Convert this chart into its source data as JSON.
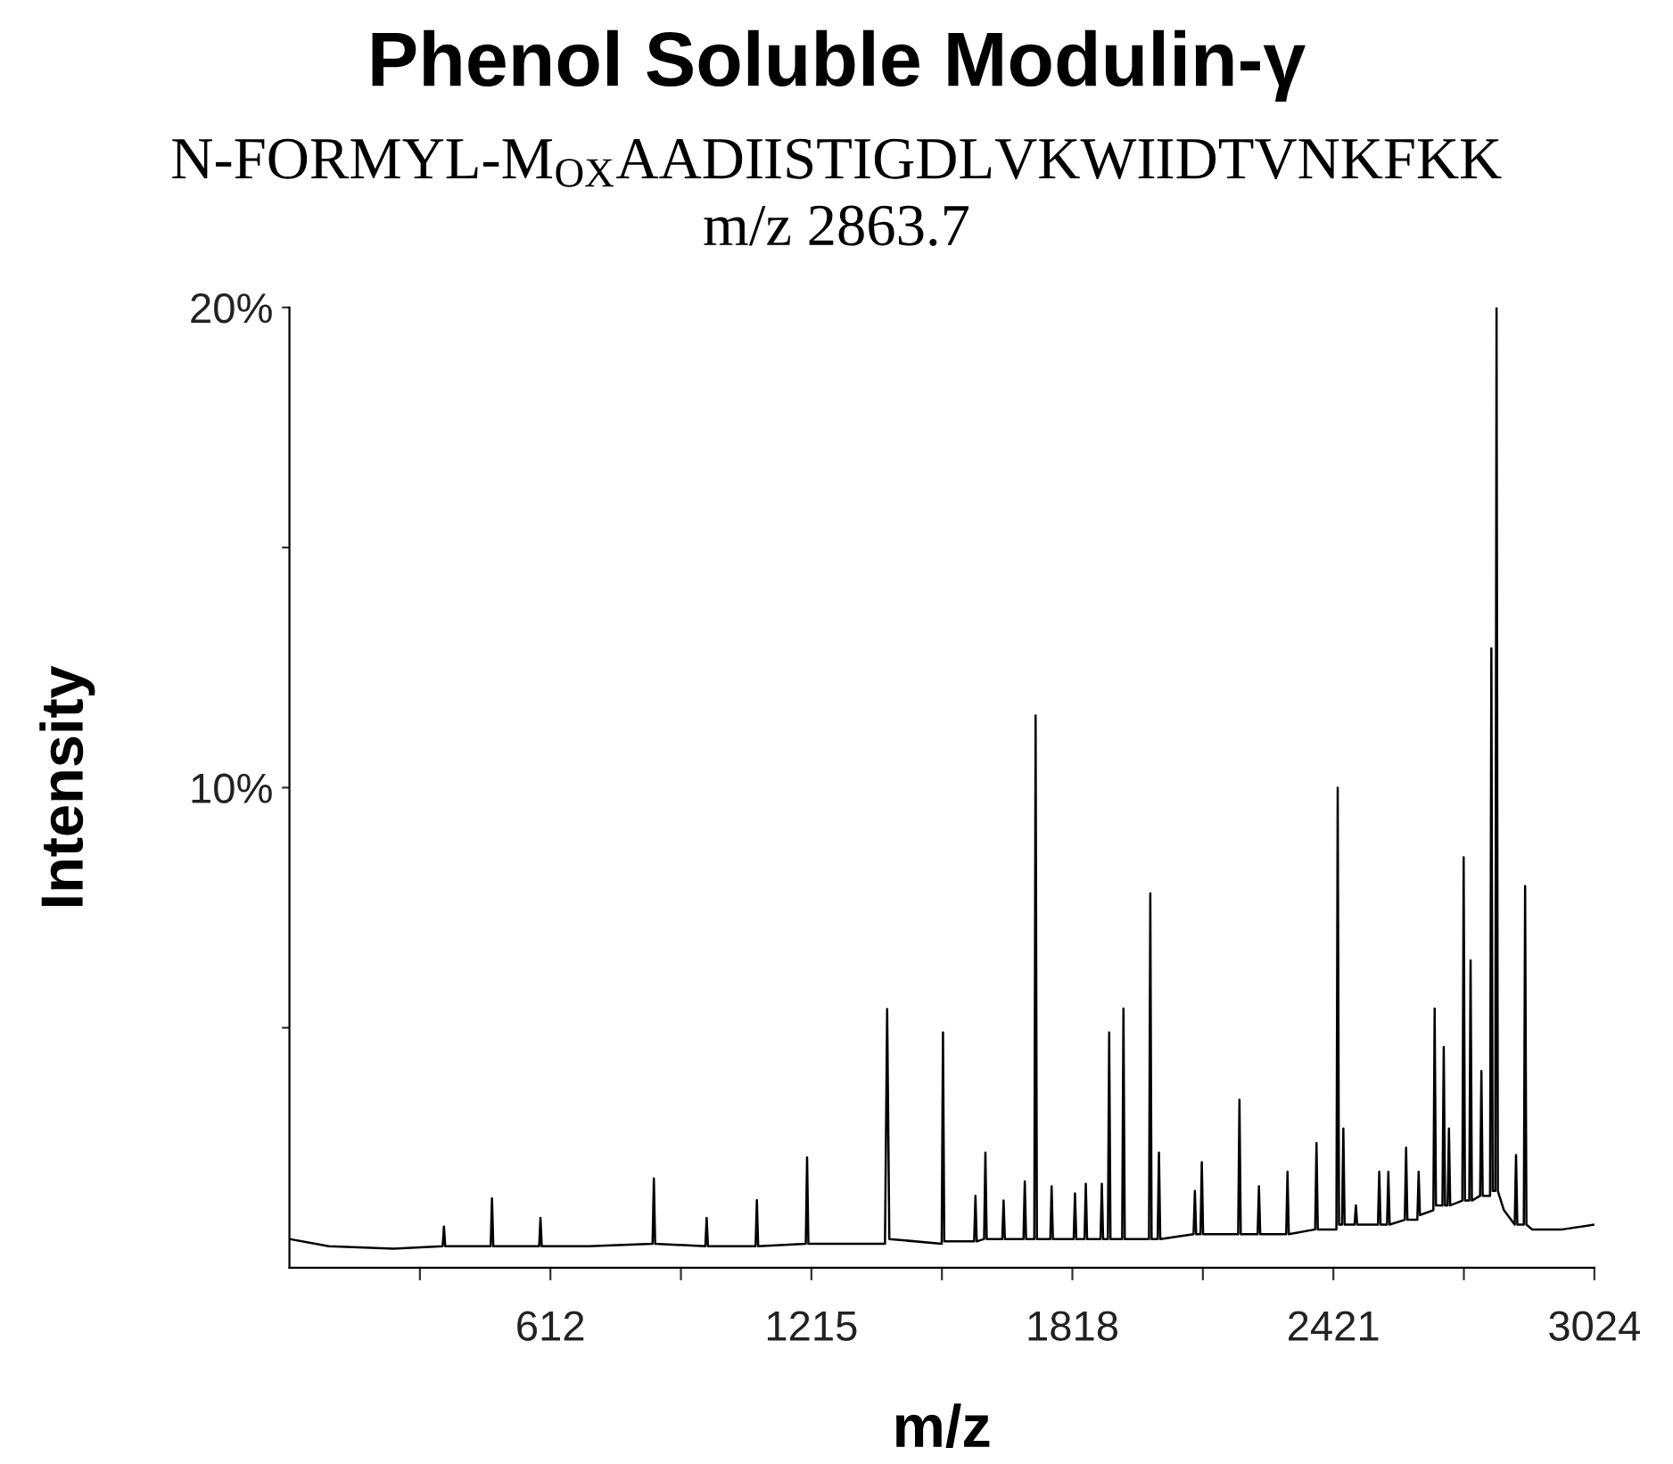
{
  "chart_data": {
    "type": "line",
    "title": "Phenol Soluble Modulin-γ",
    "subtitle": "N-FORMYL-M$_{OX}$AADIISTIGDLVKWIIDTVNKFKK\nm/z 2863.7",
    "xlabel": "m/z",
    "ylabel": "Intensity",
    "xlim": [
      9,
      3024
    ],
    "ylim": [
      0,
      20
    ],
    "xticks": [
      {
        "value": 310.5,
        "label": null
      },
      612,
      {
        "value": 913.5,
        "label": null
      },
      1215,
      {
        "value": 1516.5,
        "label": null
      },
      1818,
      {
        "value": 2119.5,
        "label": null
      },
      2421,
      {
        "value": 2722.5,
        "label": null
      },
      3024
    ],
    "yticks": [
      {
        "value": 5,
        "label": null
      },
      {
        "value": 10,
        "label": "10%"
      },
      {
        "value": 15,
        "label": null
      },
      {
        "value": 20,
        "label": "20%"
      }
    ],
    "grid": false,
    "marker": "none",
    "line_style": "solid",
    "series": [
      {
        "color": "#000000",
        "x": [
          9,
          100,
          250,
          363,
          366,
          369,
          474,
          477,
          480,
          586,
          589,
          592,
          700,
          848,
          851,
          854,
          970,
          973,
          976,
          1086,
          1089,
          1092,
          1202,
          1205,
          1208,
          1300,
          1385,
          1390,
          1395,
          1516,
          1519,
          1522,
          1591,
          1594,
          1597,
          1614,
          1617,
          1620,
          1656,
          1659,
          1662,
          1705,
          1708,
          1711,
          1730,
          1733,
          1736,
          1767,
          1770,
          1773,
          1821,
          1824,
          1827,
          1846,
          1849,
          1852,
          1883,
          1886,
          1889,
          1900,
          1903,
          1906,
          1933,
          1936,
          1939,
          1995,
          1998,
          2001,
          2015,
          2018,
          2021,
          2098,
          2101,
          2104,
          2114,
          2117,
          2120,
          2201,
          2204,
          2207,
          2246,
          2249,
          2252,
          2312,
          2315,
          2318,
          2379,
          2382,
          2385,
          2428,
          2431,
          2434,
          2441,
          2444,
          2447,
          2470,
          2473,
          2476,
          2524,
          2527,
          2530,
          2545,
          2548,
          2551,
          2586,
          2589,
          2592,
          2615,
          2618,
          2621,
          2652,
          2655,
          2658,
          2673,
          2676,
          2679,
          2685,
          2688,
          2691,
          2719,
          2722,
          2725,
          2735,
          2738,
          2741,
          2760,
          2763,
          2766,
          2783,
          2786,
          2789,
          2795,
          2798,
          2801,
          2815,
          2840,
          2843,
          2846,
          2861,
          2864,
          2867,
          2880,
          2950,
          3024
        ],
        "values": [
          0.6,
          0.45,
          0.4,
          0.45,
          0.86,
          0.45,
          0.45,
          1.45,
          0.45,
          0.45,
          1.04,
          0.45,
          0.45,
          0.5,
          1.86,
          0.5,
          0.45,
          1.04,
          0.45,
          0.45,
          1.41,
          0.45,
          0.5,
          2.3,
          0.5,
          0.5,
          0.5,
          5.39,
          0.6,
          0.5,
          4.9,
          0.55,
          0.55,
          1.5,
          0.55,
          0.6,
          2.4,
          0.6,
          0.6,
          1.4,
          0.6,
          0.6,
          1.8,
          0.6,
          0.6,
          11.5,
          0.6,
          0.6,
          1.7,
          0.6,
          0.6,
          1.55,
          0.6,
          0.6,
          1.75,
          0.6,
          0.6,
          1.75,
          0.6,
          0.6,
          4.9,
          0.6,
          0.6,
          5.4,
          0.6,
          0.6,
          7.8,
          0.6,
          0.6,
          2.4,
          0.6,
          0.7,
          1.6,
          0.7,
          0.7,
          2.2,
          0.7,
          0.7,
          3.5,
          0.7,
          0.7,
          1.7,
          0.7,
          0.7,
          2.0,
          0.7,
          0.8,
          2.6,
          0.8,
          0.8,
          10.0,
          0.9,
          0.9,
          2.9,
          0.9,
          0.9,
          1.3,
          0.9,
          0.9,
          2.0,
          0.9,
          0.9,
          2.0,
          0.9,
          1.0,
          2.5,
          1.0,
          1.0,
          2.0,
          1.1,
          1.2,
          5.4,
          1.3,
          1.3,
          4.6,
          1.3,
          1.3,
          2.9,
          1.3,
          1.4,
          8.55,
          1.4,
          1.4,
          6.4,
          1.4,
          1.5,
          4.1,
          1.5,
          1.5,
          12.9,
          1.6,
          1.6,
          20,
          1.6,
          1.2,
          0.9,
          2.35,
          0.9,
          0.9,
          7.95,
          0.9,
          0.8,
          0.8,
          0.9
        ]
      }
    ]
  }
}
